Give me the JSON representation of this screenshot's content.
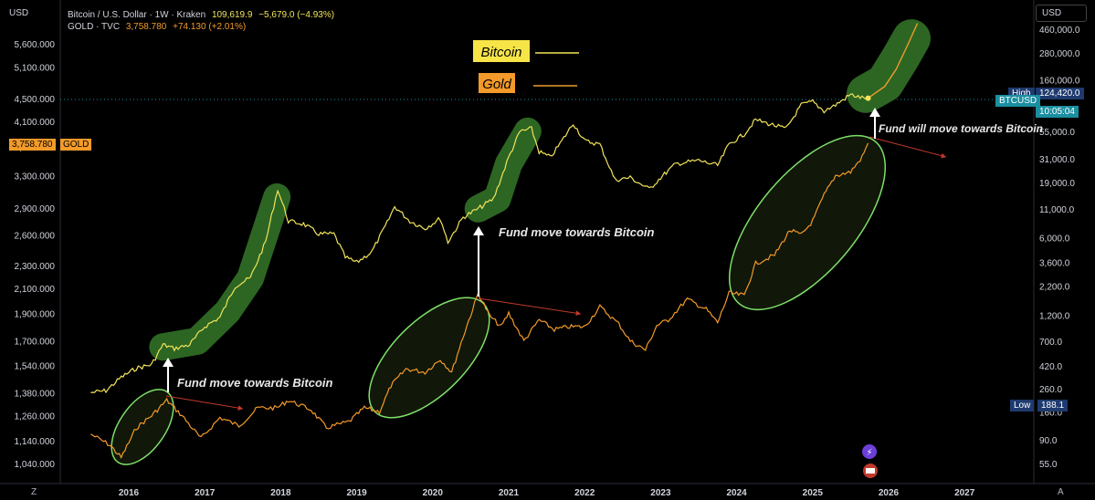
{
  "header": {
    "left_currency": "USD",
    "right_currency": "USD",
    "line1": {
      "symbol": "Bitcoin / U.S. Dollar · 1W · Kraken",
      "price": "109,619.9",
      "change": "−5,679.0 (−4.93%)"
    },
    "line2": {
      "symbol": "GOLD · TVC",
      "price": "3,758.780",
      "change": "+74.130 (+2.01%)"
    }
  },
  "badges": {
    "gold_price": "3,758.780",
    "gold_label": "GOLD",
    "btc_ticker": "BTCUSD",
    "btc_timer": "10:05:04",
    "high_label": "High",
    "high_value": "124,420.0",
    "low_label": "Low",
    "low_value": "188.1"
  },
  "corners": {
    "bottom_left": "Z",
    "bottom_right": "A"
  },
  "colors": {
    "bitcoin": "#f2e35a",
    "gold": "#f39a2a",
    "green_highlight": "#2f6b25",
    "green_ellipse": "#7ee06a",
    "red_arrow": "#c0392b",
    "badge_gold": "#f39a2a",
    "badge_teal": "#1a8fa0",
    "badge_navy": "#1e3a6e"
  },
  "chart_data": {
    "type": "line",
    "x_axis_labels": [
      "2016",
      "2017",
      "2018",
      "2019",
      "2020",
      "2021",
      "2022",
      "2023",
      "2024",
      "2025",
      "2026",
      "2027"
    ],
    "left_axis": {
      "unit": "USD",
      "ticks": [
        "5,600.000",
        "5,100.000",
        "4,500.000",
        "4,100.000",
        "3,700.000",
        "3,300.000",
        "2,900.000",
        "2,600.000",
        "2,300.000",
        "2,100.000",
        "1,900.000",
        "1,700.000",
        "1,540.000",
        "1,380.000",
        "1,260.000",
        "1,140.000",
        "1,040.000"
      ],
      "scale": "log"
    },
    "right_axis": {
      "unit": "USD",
      "ticks": [
        "460,000.0",
        "280,000.0",
        "160,000.0",
        "55,000.0",
        "31,000.0",
        "19,000.0",
        "11,000.0",
        "6,000.0",
        "3,600.0",
        "2,200.0",
        "1,200.0",
        "700.0",
        "420.0",
        "260.0",
        "160.0",
        "90.0",
        "55.0"
      ],
      "scale": "log"
    },
    "series": [
      {
        "name": "Bitcoin",
        "axis": "right",
        "points": [
          [
            2015.5,
            240
          ],
          [
            2015.7,
            250
          ],
          [
            2015.9,
            330
          ],
          [
            2016.1,
            400
          ],
          [
            2016.3,
            430
          ],
          [
            2016.45,
            650
          ],
          [
            2016.6,
            600
          ],
          [
            2016.8,
            650
          ],
          [
            2017.0,
            950
          ],
          [
            2017.2,
            1150
          ],
          [
            2017.4,
            2200
          ],
          [
            2017.6,
            2600
          ],
          [
            2017.8,
            5500
          ],
          [
            2017.96,
            16500
          ],
          [
            2018.1,
            8500
          ],
          [
            2018.3,
            8000
          ],
          [
            2018.5,
            6500
          ],
          [
            2018.7,
            6500
          ],
          [
            2018.85,
            4000
          ],
          [
            2019.0,
            3600
          ],
          [
            2019.2,
            4500
          ],
          [
            2019.4,
            8200
          ],
          [
            2019.5,
            11500
          ],
          [
            2019.7,
            8500
          ],
          [
            2019.9,
            7300
          ],
          [
            2020.1,
            9000
          ],
          [
            2020.2,
            5500
          ],
          [
            2020.4,
            9200
          ],
          [
            2020.6,
            11000
          ],
          [
            2020.8,
            13500
          ],
          [
            2021.0,
            32000
          ],
          [
            2021.15,
            55000
          ],
          [
            2021.3,
            58000
          ],
          [
            2021.4,
            36000
          ],
          [
            2021.55,
            32000
          ],
          [
            2021.7,
            45000
          ],
          [
            2021.85,
            65000
          ],
          [
            2022.0,
            45000
          ],
          [
            2022.2,
            42000
          ],
          [
            2022.4,
            20000
          ],
          [
            2022.6,
            21000
          ],
          [
            2022.85,
            16500
          ],
          [
            2023.0,
            21000
          ],
          [
            2023.2,
            28000
          ],
          [
            2023.5,
            30000
          ],
          [
            2023.75,
            27000
          ],
          [
            2023.9,
            42000
          ],
          [
            2024.1,
            52000
          ],
          [
            2024.25,
            70000
          ],
          [
            2024.5,
            62000
          ],
          [
            2024.65,
            58000
          ],
          [
            2024.85,
            95000
          ],
          [
            2025.0,
            102000
          ],
          [
            2025.15,
            84000
          ],
          [
            2025.3,
            95000
          ],
          [
            2025.5,
            118000
          ],
          [
            2025.65,
            110000
          ],
          [
            2025.73,
            109620
          ]
        ],
        "projection": [
          [
            2025.73,
            109620
          ],
          [
            2025.95,
            140000
          ],
          [
            2026.1,
            200000
          ],
          [
            2026.25,
            330000
          ],
          [
            2026.38,
            520000
          ]
        ]
      },
      {
        "name": "Gold",
        "axis": "left",
        "points": [
          [
            2015.5,
            1170
          ],
          [
            2015.75,
            1120
          ],
          [
            2015.9,
            1065
          ],
          [
            2016.1,
            1200
          ],
          [
            2016.3,
            1260
          ],
          [
            2016.5,
            1340
          ],
          [
            2016.7,
            1260
          ],
          [
            2016.95,
            1150
          ],
          [
            2017.2,
            1250
          ],
          [
            2017.45,
            1210
          ],
          [
            2017.7,
            1300
          ],
          [
            2017.95,
            1300
          ],
          [
            2018.1,
            1340
          ],
          [
            2018.4,
            1290
          ],
          [
            2018.6,
            1200
          ],
          [
            2018.9,
            1230
          ],
          [
            2019.1,
            1300
          ],
          [
            2019.3,
            1280
          ],
          [
            2019.45,
            1420
          ],
          [
            2019.65,
            1520
          ],
          [
            2019.9,
            1500
          ],
          [
            2020.1,
            1580
          ],
          [
            2020.25,
            1500
          ],
          [
            2020.4,
            1730
          ],
          [
            2020.6,
            2060
          ],
          [
            2020.75,
            1880
          ],
          [
            2020.9,
            1800
          ],
          [
            2021.0,
            1900
          ],
          [
            2021.2,
            1700
          ],
          [
            2021.4,
            1850
          ],
          [
            2021.6,
            1780
          ],
          [
            2021.8,
            1800
          ],
          [
            2022.0,
            1800
          ],
          [
            2022.2,
            1950
          ],
          [
            2022.45,
            1820
          ],
          [
            2022.6,
            1700
          ],
          [
            2022.8,
            1640
          ],
          [
            2022.95,
            1810
          ],
          [
            2023.1,
            1850
          ],
          [
            2023.35,
            2010
          ],
          [
            2023.6,
            1930
          ],
          [
            2023.75,
            1830
          ],
          [
            2023.9,
            2060
          ],
          [
            2024.1,
            2040
          ],
          [
            2024.25,
            2320
          ],
          [
            2024.5,
            2400
          ],
          [
            2024.7,
            2650
          ],
          [
            2024.85,
            2600
          ],
          [
            2025.0,
            2750
          ],
          [
            2025.15,
            3050
          ],
          [
            2025.3,
            3300
          ],
          [
            2025.5,
            3350
          ],
          [
            2025.65,
            3550
          ],
          [
            2025.73,
            3758.78
          ]
        ]
      }
    ],
    "annotations": [
      {
        "text": "Bitcoin",
        "kind": "legend-box",
        "series": "Bitcoin"
      },
      {
        "text": "Gold",
        "kind": "legend-box",
        "series": "Gold"
      },
      {
        "text": "Fund move towards Bitcoin",
        "kind": "note"
      },
      {
        "text": "Fund move towards Bitcoin",
        "kind": "note"
      },
      {
        "text": "Fund will move towards Bitcoin",
        "kind": "note"
      }
    ],
    "grid": false
  }
}
